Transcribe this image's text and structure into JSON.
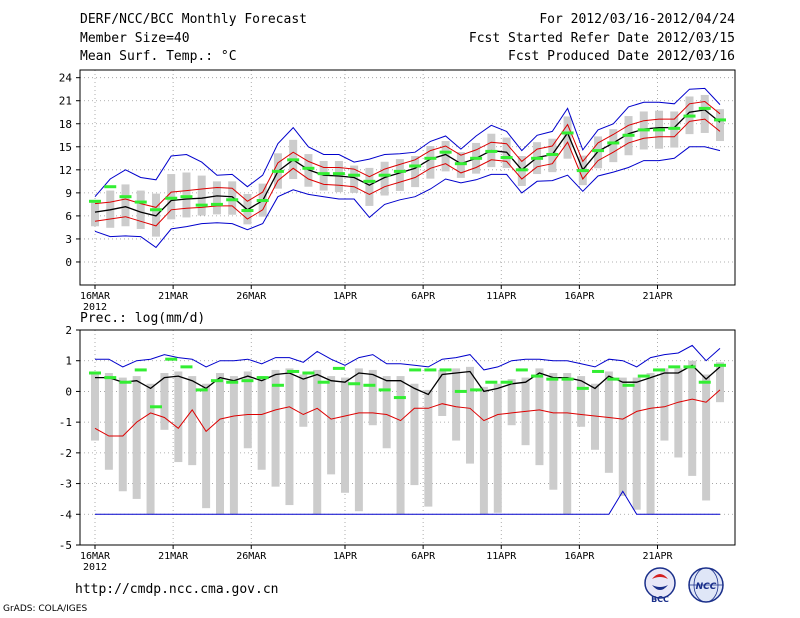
{
  "header": {
    "title": "DERF/NCC/BCC Monthly Forecast",
    "member_size": "Member Size=40",
    "variable": "Mean Surf. Temp.: °C",
    "period": "For 2012/03/16-2012/04/24",
    "started": "Fcst Started Refer Date 2012/03/15",
    "produced": "Fcst Produced Date 2012/03/16"
  },
  "footer": {
    "url": "http://cmdp.ncc.cma.gov.cn",
    "credit": "GrADS: COLA/IGES",
    "logo_left_text": "BCC",
    "logo_right_text": "NCC"
  },
  "colors": {
    "mean": "#000000",
    "inner": "#dd0000",
    "outer": "#0000cc",
    "obs": "#33ee33",
    "box": "#cccccc"
  },
  "chart_data": [
    {
      "type": "line",
      "title": "Mean Surf. Temp.: °C",
      "x_tick_labels": [
        "16MAR",
        "21MAR",
        "26MAR",
        "1APR",
        "6APR",
        "11APR",
        "16APR",
        "21APR"
      ],
      "x_tick_days": [
        0,
        5,
        10,
        16,
        21,
        26,
        31,
        36
      ],
      "year_label": "2012",
      "ylim": [
        -3,
        25
      ],
      "yticks": [
        0,
        3,
        6,
        9,
        12,
        15,
        18,
        21,
        24
      ],
      "grid": true,
      "days": 40,
      "series": [
        {
          "name": "mean",
          "values": [
            6.5,
            6.8,
            7.2,
            6.5,
            6.0,
            8.0,
            8.2,
            8.3,
            8.6,
            8.5,
            6.8,
            8.0,
            11.8,
            13.3,
            12.0,
            11.3,
            11.2,
            11.0,
            10.0,
            11.0,
            11.6,
            12.2,
            13.4,
            14.0,
            12.8,
            13.5,
            14.5,
            14.3,
            12.0,
            13.6,
            14.0,
            16.8,
            12.0,
            14.4,
            15.5,
            16.7,
            17.3,
            17.5,
            17.5,
            19.5,
            19.8,
            18.2
          ]
        },
        {
          "name": "upper_inner",
          "values": [
            7.6,
            7.8,
            8.2,
            7.6,
            7.1,
            9.1,
            9.3,
            9.5,
            9.7,
            9.6,
            7.9,
            9.1,
            12.9,
            14.3,
            13.1,
            12.3,
            12.3,
            12.1,
            11.1,
            12.1,
            12.7,
            13.3,
            14.5,
            15.1,
            13.9,
            14.6,
            15.6,
            15.4,
            13.1,
            14.7,
            15.1,
            17.9,
            13.1,
            15.5,
            16.6,
            17.8,
            18.4,
            18.6,
            18.6,
            20.6,
            20.9,
            19.3
          ]
        },
        {
          "name": "lower_inner",
          "values": [
            5.3,
            5.6,
            5.9,
            5.3,
            4.7,
            6.8,
            7.0,
            7.1,
            7.3,
            7.3,
            5.6,
            6.8,
            10.6,
            12.2,
            10.8,
            10.1,
            10.0,
            9.8,
            8.8,
            9.8,
            10.4,
            11.0,
            12.2,
            12.8,
            11.6,
            12.3,
            13.3,
            13.1,
            10.8,
            12.4,
            12.8,
            15.6,
            10.8,
            13.2,
            14.3,
            15.5,
            16.1,
            16.3,
            16.3,
            18.3,
            18.6,
            17.0
          ]
        },
        {
          "name": "upper_outer",
          "values": [
            8.5,
            10.8,
            12.0,
            11.0,
            10.7,
            13.8,
            14.0,
            13.0,
            11.3,
            11.4,
            9.8,
            11.3,
            15.4,
            17.5,
            15.0,
            14.0,
            14.0,
            13.0,
            13.4,
            14.0,
            14.1,
            14.3,
            15.7,
            16.4,
            14.7,
            16.4,
            17.8,
            17.0,
            14.5,
            16.5,
            17.0,
            20.0,
            14.6,
            17.2,
            18.0,
            20.2,
            20.8,
            20.8,
            20.6,
            22.5,
            22.6,
            20.5
          ]
        },
        {
          "name": "lower_outer",
          "values": [
            4.0,
            3.3,
            3.4,
            3.3,
            1.9,
            4.3,
            4.6,
            5.0,
            5.1,
            5.0,
            4.2,
            5.0,
            8.5,
            9.4,
            8.8,
            8.5,
            8.2,
            8.2,
            5.8,
            7.5,
            8.1,
            8.5,
            9.5,
            10.8,
            10.3,
            10.7,
            11.4,
            11.4,
            9.0,
            10.5,
            10.6,
            11.3,
            9.2,
            11.2,
            11.7,
            12.3,
            13.2,
            13.2,
            13.5,
            15.0,
            15.0,
            14.5
          ]
        },
        {
          "name": "obs",
          "values": [
            7.9,
            9.8,
            8.5,
            7.8,
            6.8,
            8.3,
            8.5,
            7.4,
            7.5,
            8.1,
            6.7,
            8.0,
            11.8,
            13.3,
            12.2,
            11.5,
            11.5,
            11.3,
            10.5,
            11.3,
            11.8,
            12.5,
            13.5,
            14.3,
            12.8,
            13.5,
            14.4,
            13.6,
            12.0,
            13.5,
            14.0,
            16.8,
            11.9,
            14.5,
            15.5,
            16.5,
            17.2,
            17.2,
            17.4,
            19.0,
            20.0,
            18.5
          ]
        }
      ]
    },
    {
      "type": "line",
      "title": "Prec.: log(mm/d)",
      "x_tick_labels": [
        "16MAR",
        "21MAR",
        "26MAR",
        "1APR",
        "6APR",
        "11APR",
        "16APR",
        "21APR"
      ],
      "x_tick_days": [
        0,
        5,
        10,
        16,
        21,
        26,
        31,
        36
      ],
      "year_label": "2012",
      "ylim": [
        -5,
        2
      ],
      "yticks": [
        -5,
        -4,
        -3,
        -2,
        -1,
        0,
        1,
        2
      ],
      "grid": true,
      "days": 40,
      "series": [
        {
          "name": "mean",
          "values": [
            0.45,
            0.45,
            0.3,
            0.35,
            0.1,
            0.45,
            0.5,
            0.35,
            0.1,
            0.45,
            0.35,
            0.5,
            0.35,
            0.55,
            0.6,
            0.4,
            0.55,
            0.35,
            0.3,
            0.6,
            0.55,
            0.35,
            0.35,
            0.1,
            -0.1,
            0.55,
            0.6,
            0.65,
            0.0,
            0.1,
            0.25,
            0.3,
            0.6,
            0.45,
            0.45,
            0.35,
            0.1,
            0.5,
            0.3,
            0.3,
            0.45,
            0.6,
            0.6,
            0.85,
            0.4,
            0.8
          ]
        },
        {
          "name": "upper_outer",
          "values": [
            1.05,
            1.05,
            0.8,
            1.0,
            1.05,
            1.2,
            1.1,
            1.05,
            0.8,
            1.0,
            1.0,
            1.05,
            0.9,
            1.1,
            1.1,
            0.95,
            1.3,
            1.05,
            0.85,
            1.1,
            1.2,
            0.9,
            0.9,
            0.85,
            0.8,
            1.05,
            1.1,
            1.2,
            0.7,
            0.8,
            1.0,
            1.05,
            1.05,
            1.0,
            1.0,
            0.9,
            0.8,
            1.05,
            1.0,
            0.8,
            1.1,
            1.2,
            1.25,
            1.5,
            1.0,
            1.4
          ]
        },
        {
          "name": "lower_outer",
          "values": [
            -4,
            -4,
            -4,
            -4,
            -4,
            -4,
            -4,
            -4,
            -4,
            -4,
            -4,
            -4,
            -4,
            -4,
            -4,
            -4,
            -4,
            -4,
            -4,
            -4,
            -4,
            -4,
            -4,
            -4,
            -4,
            -4,
            -4,
            -4,
            -4,
            -4,
            -4,
            -4,
            -4,
            -4,
            -4,
            -4,
            -4,
            -4,
            -3.25,
            -4,
            -4,
            -4,
            -4,
            -4,
            -4,
            -4
          ]
        },
        {
          "name": "lower_inner",
          "values": [
            -1.2,
            -1.45,
            -1.45,
            -1.0,
            -0.7,
            -0.85,
            -1.2,
            -0.6,
            -1.3,
            -0.9,
            -0.8,
            -0.75,
            -0.75,
            -0.6,
            -0.5,
            -0.75,
            -0.55,
            -0.9,
            -0.8,
            -0.7,
            -0.7,
            -0.75,
            -0.95,
            -0.55,
            -0.55,
            -0.4,
            -0.5,
            -0.55,
            -0.95,
            -0.75,
            -0.7,
            -0.65,
            -0.6,
            -0.7,
            -0.7,
            -0.75,
            -0.8,
            -0.85,
            -0.9,
            -0.65,
            -0.55,
            -0.5,
            -0.35,
            -0.25,
            -0.35,
            0.05
          ]
        },
        {
          "name": "obs",
          "values": [
            0.6,
            0.45,
            0.3,
            0.7,
            -0.5,
            1.05,
            0.8,
            0.05,
            0.35,
            0.3,
            0.35,
            0.45,
            0.2,
            0.65,
            0.6,
            0.3,
            0.75,
            0.25,
            0.2,
            0.05,
            -0.2,
            0.7,
            0.7,
            0.7,
            0.0,
            0.05,
            0.3,
            0.3,
            0.7,
            0.5,
            0.4,
            0.4,
            0.1,
            0.65,
            0.4,
            0.2,
            0.5,
            0.7,
            0.8,
            0.8,
            0.3,
            0.85
          ]
        }
      ]
    }
  ]
}
